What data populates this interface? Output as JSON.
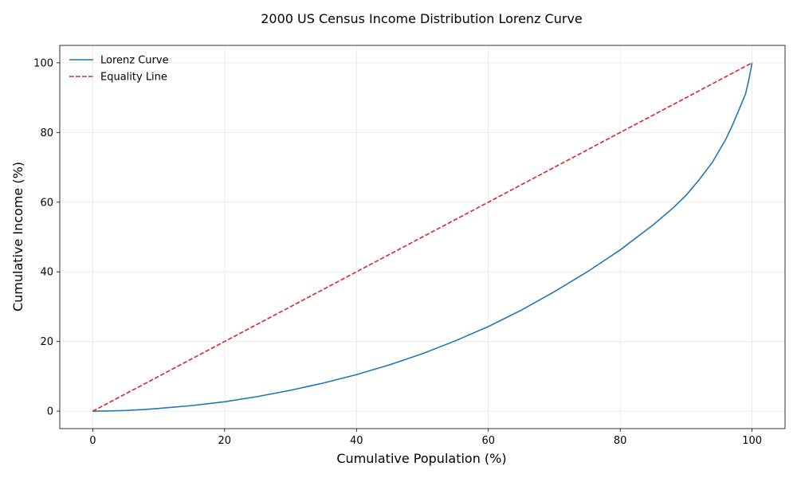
{
  "chart_data": {
    "type": "line",
    "title": "2000 US Census Income Distribution Lorenz Curve",
    "xlabel": "Cumulative Population (%)",
    "ylabel": "Cumulative Income (%)",
    "xlim": [
      -5,
      105
    ],
    "ylim": [
      -5,
      105
    ],
    "xticks": [
      0,
      20,
      40,
      60,
      80,
      100
    ],
    "yticks": [
      0,
      20,
      40,
      60,
      80,
      100
    ],
    "xtick_labels": [
      "0",
      "20",
      "40",
      "60",
      "80",
      "100"
    ],
    "ytick_labels": [
      "0",
      "20",
      "40",
      "60",
      "80",
      "100"
    ],
    "grid": true,
    "legend_position": "top-left",
    "series": [
      {
        "name": "Lorenz Curve",
        "color": "#1f77b4",
        "style": "solid",
        "x": [
          0,
          2,
          5,
          8,
          10,
          15,
          20,
          25,
          30,
          35,
          40,
          45,
          50,
          55,
          60,
          65,
          70,
          75,
          80,
          85,
          88,
          90,
          92,
          94,
          96,
          97,
          98,
          99,
          99.5,
          100
        ],
        "y": [
          0,
          0.05,
          0.2,
          0.5,
          0.8,
          1.6,
          2.7,
          4.2,
          6.0,
          8.1,
          10.5,
          13.3,
          16.5,
          20.2,
          24.3,
          29.0,
          34.3,
          40.0,
          46.3,
          53.5,
          58.3,
          62.0,
          66.5,
          71.5,
          78.0,
          82.0,
          86.5,
          91.0,
          95.0,
          100
        ]
      },
      {
        "name": "Equality Line",
        "color": "#d62728",
        "style": "dashed",
        "x": [
          0,
          100
        ],
        "y": [
          0,
          100
        ]
      }
    ]
  }
}
